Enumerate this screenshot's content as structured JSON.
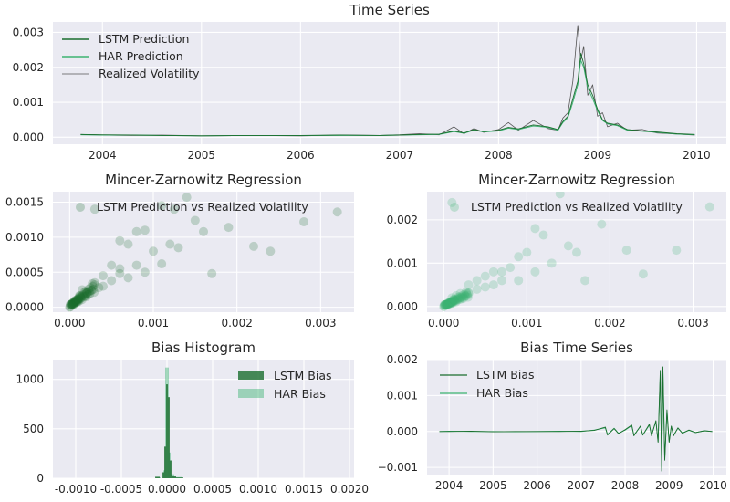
{
  "colors": {
    "panel_bg": "#eaeaf2",
    "grid": "#ffffff",
    "lstm": "#1a6e2e",
    "har": "#3cb371",
    "realized": "#555555"
  },
  "chart_data": [
    {
      "id": "ts",
      "type": "line",
      "title": "Time Series",
      "xlabel": "",
      "ylabel": "",
      "xlim": [
        2003.5,
        2010.3
      ],
      "ylim": [
        -0.0002,
        0.0033
      ],
      "xticks": [
        2004,
        2005,
        2006,
        2007,
        2008,
        2009,
        2010
      ],
      "xtick_labels": [
        "2004",
        "2005",
        "2006",
        "2007",
        "2008",
        "2009",
        "2010"
      ],
      "yticks": [
        0.0,
        0.001,
        0.002,
        0.003
      ],
      "ytick_labels": [
        "0.000",
        "0.001",
        "0.002",
        "0.003"
      ],
      "grid": true,
      "legend_position": "top-left",
      "series": [
        {
          "name": "LSTM Prediction",
          "color": "#1a6e2e"
        },
        {
          "name": "HAR Prediction",
          "color": "#3cb371"
        },
        {
          "name": "Realized Volatility",
          "color": "#555555"
        }
      ],
      "x": [
        2003.78,
        2004.0,
        2004.3,
        2004.6,
        2005.0,
        2005.5,
        2006.0,
        2006.4,
        2006.8,
        2007.0,
        2007.2,
        2007.4,
        2007.55,
        2007.65,
        2007.75,
        2007.85,
        2008.0,
        2008.1,
        2008.2,
        2008.35,
        2008.5,
        2008.6,
        2008.65,
        2008.7,
        2008.75,
        2008.8,
        2008.83,
        2008.86,
        2008.9,
        2008.95,
        2009.0,
        2009.05,
        2009.1,
        2009.2,
        2009.3,
        2009.45,
        2009.6,
        2009.8,
        2009.98
      ],
      "lstm": [
        8e-05,
        7e-05,
        6e-05,
        5e-05,
        4e-05,
        5e-05,
        5e-05,
        6e-05,
        5e-05,
        6e-05,
        8e-05,
        9e-05,
        0.00018,
        0.00012,
        0.00022,
        0.00016,
        0.0002,
        0.00028,
        0.00024,
        0.00035,
        0.0003,
        0.00022,
        0.00045,
        0.0006,
        0.0011,
        0.0016,
        0.0024,
        0.0021,
        0.0015,
        0.0012,
        0.0008,
        0.0005,
        0.0004,
        0.00035,
        0.00022,
        0.00018,
        0.00015,
        0.0001,
        8e-05
      ],
      "har": [
        7e-05,
        6e-05,
        6e-05,
        5e-05,
        4e-05,
        5e-05,
        5e-05,
        5e-05,
        5e-05,
        6e-05,
        7e-05,
        8e-05,
        0.00016,
        0.00011,
        0.0002,
        0.00015,
        0.00018,
        0.00026,
        0.00022,
        0.00032,
        0.00028,
        0.0002,
        0.00042,
        0.00056,
        0.001,
        0.0015,
        0.0022,
        0.002,
        0.0014,
        0.0011,
        0.00075,
        0.00048,
        0.00038,
        0.00033,
        0.0002,
        0.00017,
        0.00014,
        9e-05,
        7e-05
      ],
      "realized": [
        8e-05,
        6e-05,
        5e-05,
        6e-05,
        4e-05,
        5e-05,
        4e-05,
        6e-05,
        5e-05,
        7e-05,
        0.0001,
        7e-05,
        0.0003,
        0.0001,
        0.00025,
        0.00014,
        0.00022,
        0.00042,
        0.0002,
        0.00048,
        0.00025,
        0.0002,
        0.00055,
        0.0007,
        0.0016,
        0.0032,
        0.0022,
        0.0026,
        0.0012,
        0.0015,
        0.0006,
        0.0007,
        0.0003,
        0.0004,
        0.0002,
        0.00022,
        0.00012,
        9e-05,
        6e-05
      ]
    },
    {
      "id": "mz1",
      "type": "scatter",
      "title": "Mincer-Zarnowitz Regression",
      "xlim": [
        -0.0002,
        0.0034
      ],
      "ylim": [
        -7e-05,
        0.00165
      ],
      "xticks": [
        0.0,
        0.001,
        0.002,
        0.003
      ],
      "xtick_labels": [
        "0.000",
        "0.001",
        "0.002",
        "0.003"
      ],
      "yticks": [
        0.0,
        0.0005,
        0.001,
        0.0015
      ],
      "ytick_labels": [
        "0.0000",
        "0.0005",
        "0.0010",
        "0.0015"
      ],
      "grid": true,
      "legend_position": "top",
      "series": [
        {
          "name": "LSTM Prediction vs Realized Volatility",
          "color": "#1a6e2e"
        }
      ],
      "points": [
        [
          0.0003,
          0.0014
        ],
        [
          0.0008,
          0.00108
        ],
        [
          0.0011,
          0.00145
        ],
        [
          0.00125,
          0.0014
        ],
        [
          0.0014,
          0.00157
        ],
        [
          0.0015,
          0.00124
        ],
        [
          0.0016,
          0.00108
        ],
        [
          0.0019,
          0.00114
        ],
        [
          0.0022,
          0.00087
        ],
        [
          0.0024,
          0.0008
        ],
        [
          0.0028,
          0.00122
        ],
        [
          0.0032,
          0.00136
        ],
        [
          0.0017,
          0.00048
        ],
        [
          0.0012,
          0.0009
        ],
        [
          0.001,
          0.0008
        ],
        [
          0.0009,
          0.0011
        ],
        [
          0.0007,
          0.0009
        ],
        [
          0.0006,
          0.00095
        ],
        [
          0.0013,
          0.00085
        ],
        [
          0.0011,
          0.00062
        ],
        [
          0.0008,
          0.0006
        ],
        [
          0.0005,
          0.0006
        ],
        [
          0.0006,
          0.00055
        ],
        [
          0.0004,
          0.00045
        ],
        [
          0.0003,
          0.00035
        ],
        [
          0.0005,
          0.00038
        ],
        [
          0.0007,
          0.00042
        ],
        [
          0.0009,
          0.0005
        ],
        [
          0.0002,
          0.0002
        ],
        [
          0.00015,
          0.00025
        ],
        [
          0.0001,
          0.00012
        ],
        [
          5e-05,
          8e-05
        ],
        [
          0.0002,
          0.00015
        ],
        [
          0.0004,
          0.0003
        ],
        [
          0.00035,
          0.00028
        ],
        [
          0.0006,
          0.00048
        ]
      ]
    },
    {
      "id": "mz2",
      "type": "scatter",
      "title": "Mincer-Zarnowitz Regression",
      "xlim": [
        -0.0002,
        0.0034
      ],
      "ylim": [
        -0.00013,
        0.00265
      ],
      "xticks": [
        0.0,
        0.001,
        0.002,
        0.003
      ],
      "xtick_labels": [
        "0.000",
        "0.001",
        "0.002",
        "0.003"
      ],
      "yticks": [
        0.0,
        0.001,
        0.002
      ],
      "ytick_labels": [
        "0.000",
        "0.001",
        "0.002"
      ],
      "grid": true,
      "legend_position": "top",
      "series": [
        {
          "name": "LSTM Prediction vs Realized Volatility",
          "color": "#3cb371"
        }
      ],
      "points": [
        [
          0.0001,
          0.0024
        ],
        [
          0.0014,
          0.0026
        ],
        [
          0.0032,
          0.0023
        ],
        [
          0.0019,
          0.0019
        ],
        [
          0.0022,
          0.0013
        ],
        [
          0.0028,
          0.0013
        ],
        [
          0.0024,
          0.00075
        ],
        [
          0.0017,
          0.0006
        ],
        [
          0.0011,
          0.0018
        ],
        [
          0.0012,
          0.00165
        ],
        [
          0.0015,
          0.0014
        ],
        [
          0.0016,
          0.00125
        ],
        [
          0.0013,
          0.001
        ],
        [
          0.001,
          0.00125
        ],
        [
          0.0009,
          0.00115
        ],
        [
          0.0008,
          0.0009
        ],
        [
          0.0007,
          0.0008
        ],
        [
          0.0006,
          0.0008
        ],
        [
          0.0005,
          0.0007
        ],
        [
          0.0004,
          0.0006
        ],
        [
          0.0003,
          0.0005
        ],
        [
          0.0007,
          0.0006
        ],
        [
          0.0009,
          0.0006
        ],
        [
          0.0011,
          0.0008
        ],
        [
          0.0002,
          0.0003
        ],
        [
          0.00015,
          0.00025
        ],
        [
          0.0001,
          0.0002
        ],
        [
          0.0003,
          0.0003
        ],
        [
          0.0005,
          0.00045
        ],
        [
          0.0004,
          0.0004
        ],
        [
          0.0006,
          0.0005
        ]
      ]
    },
    {
      "id": "hist",
      "type": "bar",
      "title": "Bias Histogram",
      "xlim": [
        -0.00125,
        0.00205
      ],
      "ylim": [
        0,
        1200
      ],
      "xticks": [
        -0.001,
        -0.0005,
        0.0,
        0.0005,
        0.001,
        0.0015,
        0.002
      ],
      "xtick_labels": [
        "-0.0010",
        "-0.0005",
        "0.0000",
        "0.0005",
        "0.0010",
        "0.0015",
        "0.0020"
      ],
      "yticks": [
        0,
        500,
        1000
      ],
      "ytick_labels": [
        "0",
        "500",
        "1000"
      ],
      "grid": true,
      "legend_position": "top-right",
      "series": [
        {
          "name": "LSTM Bias",
          "color": "#1a6e2e"
        },
        {
          "name": "HAR Bias",
          "color": "#3cb371"
        }
      ],
      "lstm_bins": [
        [
          -0.00013,
          5e-05,
          15
        ],
        [
          -5e-05,
          2e-05,
          60
        ],
        [
          -3e-05,
          2e-05,
          320
        ],
        [
          -1e-05,
          2e-05,
          950
        ],
        [
          1e-05,
          2e-05,
          820
        ],
        [
          3e-05,
          2e-05,
          180
        ],
        [
          5e-05,
          5e-05,
          25
        ],
        [
          0.0001,
          8e-05,
          8
        ]
      ],
      "har_bins": [
        [
          -0.00012,
          5e-05,
          10
        ],
        [
          -4e-05,
          2e-05,
          80
        ],
        [
          -2e-05,
          2e-05,
          1120
        ],
        [
          0.0,
          2e-05,
          1120
        ],
        [
          2e-05,
          2e-05,
          260
        ],
        [
          4e-05,
          4e-05,
          40
        ],
        [
          8e-05,
          8e-05,
          12
        ]
      ]
    },
    {
      "id": "bts",
      "type": "line",
      "title": "Bias Time Series",
      "xlim": [
        2003.5,
        2010.3
      ],
      "ylim": [
        -0.0012,
        0.002
      ],
      "xticks": [
        2004,
        2005,
        2006,
        2007,
        2008,
        2009,
        2010
      ],
      "xtick_labels": [
        "2004",
        "2005",
        "2006",
        "2007",
        "2008",
        "2009",
        "2010"
      ],
      "yticks": [
        -0.001,
        0.0,
        0.001,
        0.002
      ],
      "ytick_labels": [
        "−0.001",
        "0.000",
        "0.001",
        "0.002"
      ],
      "grid": true,
      "legend_position": "top-left",
      "series": [
        {
          "name": "LSTM Bias",
          "color": "#1a6e2e"
        },
        {
          "name": "HAR Bias",
          "color": "#3cb371"
        }
      ],
      "x": [
        2003.78,
        2004.0,
        2004.5,
        2005.0,
        2005.5,
        2006.0,
        2006.5,
        2007.0,
        2007.3,
        2007.55,
        2007.6,
        2007.75,
        2007.85,
        2008.0,
        2008.15,
        2008.2,
        2008.35,
        2008.4,
        2008.55,
        2008.6,
        2008.7,
        2008.75,
        2008.8,
        2008.83,
        2008.86,
        2008.9,
        2008.95,
        2009.0,
        2009.05,
        2009.1,
        2009.2,
        2009.3,
        2009.45,
        2009.6,
        2009.8,
        2009.98
      ],
      "lstm": [
        0.0,
        0.0,
        1e-05,
        -1e-05,
        0.0,
        0.0,
        0.0,
        1e-05,
        3e-05,
        0.00012,
        -0.0001,
        8e-05,
        -6e-05,
        5e-05,
        0.00018,
        -0.00012,
        0.00015,
        -0.0001,
        0.0002,
        -0.00012,
        0.0003,
        -0.0003,
        0.0017,
        -0.0011,
        0.0018,
        -0.0008,
        0.0006,
        -0.0003,
        0.00015,
        -0.00012,
        0.0001,
        -5e-05,
        4e-05,
        -3e-05,
        2e-05,
        0.0
      ],
      "har": [
        0.0,
        1e-05,
        0.0,
        0.0,
        -1e-05,
        0.0,
        1e-05,
        0.0,
        4e-05,
        0.0001,
        -8e-05,
        9e-05,
        -5e-05,
        4e-05,
        0.00016,
        -0.0001,
        0.00014,
        -0.0001,
        0.00018,
        -0.0001,
        0.00028,
        -0.00028,
        0.0016,
        -0.001,
        0.0017,
        -0.00075,
        0.00055,
        -0.00028,
        0.00014,
        -0.0001,
        9e-05,
        -4e-05,
        3e-05,
        -3e-05,
        2e-05,
        0.0
      ]
    }
  ]
}
